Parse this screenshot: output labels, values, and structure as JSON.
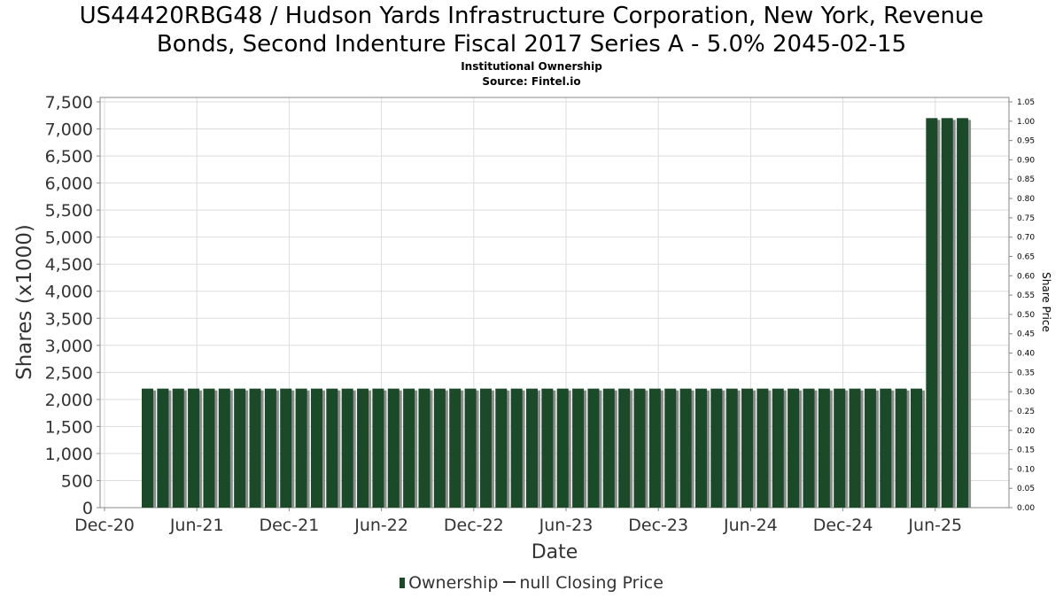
{
  "title_line1": "US44420RBG48 / Hudson Yards Infrastructure Corporation, New York, Revenue",
  "title_line2": "Bonds, Second Indenture Fiscal 2017 Series A - 5.0% 2045-02-15",
  "subtitle": "Institutional Ownership",
  "source": "Source: Fintel.io",
  "legend": {
    "ownership": "Ownership",
    "price": "null Closing Price"
  },
  "colors": {
    "bar": "#1a4a28",
    "bar_shadow": "#8c8c8c",
    "grid": "#dddddd",
    "axis": "#888888"
  },
  "chart_data": {
    "type": "bar",
    "title": "US44420RBG48 / Hudson Yards Infrastructure Corporation, New York, Revenue Bonds, Second Indenture Fiscal 2017 Series A - 5.0% 2045-02-15",
    "xlabel": "Date",
    "ylabel": "Shares (x1000)",
    "y2label": "Share Price",
    "x_ticks": [
      "Dec-20",
      "Jun-21",
      "Dec-21",
      "Jun-22",
      "Dec-22",
      "Jun-23",
      "Dec-23",
      "Jun-24",
      "Dec-24",
      "Jun-25"
    ],
    "y_ticks": [
      "0",
      "500",
      "1,000",
      "1,500",
      "2,000",
      "2,500",
      "3,000",
      "3,500",
      "4,000",
      "4,500",
      "5,000",
      "5,500",
      "6,000",
      "6,500",
      "7,000",
      "7,500"
    ],
    "y2_ticks": [
      "0.00",
      "0.05",
      "0.10",
      "0.15",
      "0.20",
      "0.25",
      "0.30",
      "0.35",
      "0.40",
      "0.45",
      "0.50",
      "0.55",
      "0.60",
      "0.65",
      "0.70",
      "0.75",
      "0.80",
      "0.85",
      "0.90",
      "0.95",
      "1.00",
      "1.05"
    ],
    "ylim": [
      0,
      7500
    ],
    "y2lim": [
      0,
      1.05
    ],
    "grid": true,
    "legend_position": "bottom",
    "series": [
      {
        "name": "Ownership",
        "values": [
          2200,
          2200,
          2200,
          2200,
          2200,
          2200,
          2200,
          2200,
          2200,
          2200,
          2200,
          2200,
          2200,
          2200,
          2200,
          2200,
          2200,
          2200,
          2200,
          2200,
          2200,
          2200,
          2200,
          2200,
          2200,
          2200,
          2200,
          2200,
          2200,
          2200,
          2200,
          2200,
          2200,
          2200,
          2200,
          2200,
          2200,
          2200,
          2200,
          2200,
          2200,
          2200,
          2200,
          2200,
          2200,
          2200,
          2200,
          2200,
          2200,
          2200,
          2200,
          7200,
          7200,
          7200
        ]
      }
    ]
  }
}
